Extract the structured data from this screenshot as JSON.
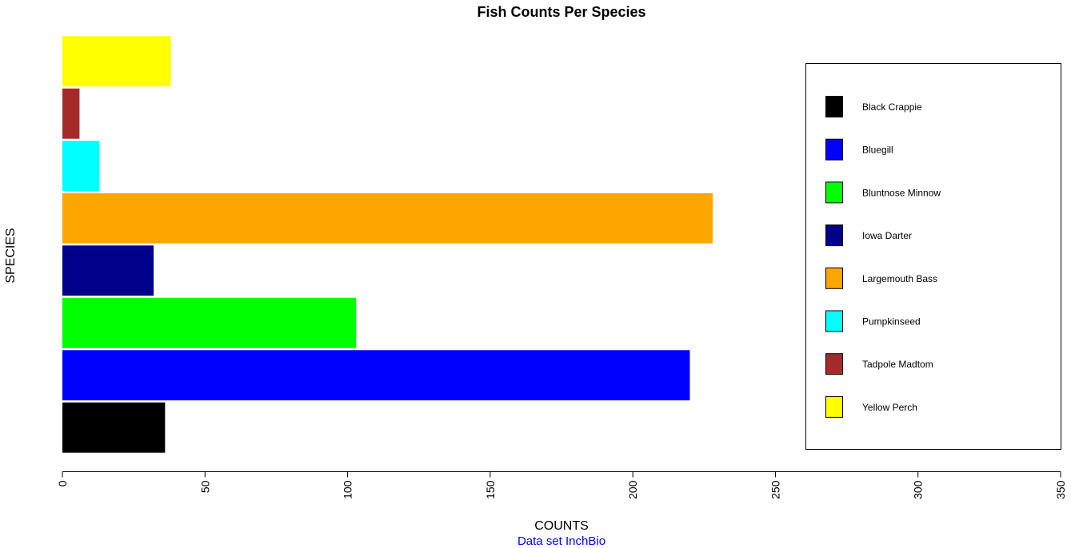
{
  "chart_data": {
    "type": "bar",
    "orientation": "horizontal",
    "title": "Fish Counts Per Species",
    "xlabel": "COUNTS",
    "ylabel": "SPECIES",
    "caption": "Data set InchBio",
    "caption_color": "#0000ff",
    "xlim": [
      0,
      350
    ],
    "xticks": [
      0,
      50,
      100,
      150,
      200,
      250,
      300,
      350
    ],
    "grid": false,
    "legend_position": "right",
    "categories": [
      "Black Crappie",
      "Bluegill",
      "Bluntnose Minnow",
      "Iowa Darter",
      "Largemouth Bass",
      "Pumpkinseed",
      "Tadpole Madtom",
      "Yellow Perch"
    ],
    "values": [
      36,
      220,
      103,
      32,
      228,
      13,
      6,
      38
    ],
    "colors": [
      "#000000",
      "#0000ff",
      "#00ff00",
      "#00008b",
      "#ffa500",
      "#00ffff",
      "#a52a2a",
      "#ffff00"
    ]
  }
}
